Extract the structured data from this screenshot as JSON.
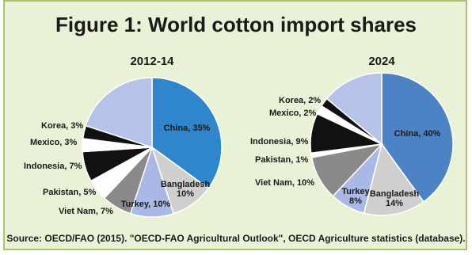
{
  "title": "Figure 1: World cotton import shares",
  "source": "Source: OECD/FAO (2015). \"OECD-FAO Agricultural Outlook\", OECD Agriculture statistics (database).",
  "chart_data": [
    {
      "type": "pie",
      "title": "2012-14",
      "slices": [
        {
          "label": "China, 35%",
          "value": 35,
          "color": "#2f86cc"
        },
        {
          "label": "Bangladesh\n10%",
          "value": 10,
          "color": "#cfcfcf"
        },
        {
          "label": "Turkey, 10%",
          "value": 10,
          "color": "#a9b8e6"
        },
        {
          "label": "Viet Nam, 7%",
          "value": 7,
          "color": "#8a8a8a"
        },
        {
          "label": "Pakistan, 5%",
          "value": 5,
          "color": "#ffffff"
        },
        {
          "label": "Indonesia, 7%",
          "value": 7,
          "color": "#111111"
        },
        {
          "label": "Mexico, 3%",
          "value": 3,
          "color": "#ffffff"
        },
        {
          "label": "Korea, 3%",
          "value": 3,
          "color": "#111111"
        },
        {
          "label": "",
          "value": 20,
          "color": "#b6c2e8"
        }
      ]
    },
    {
      "type": "pie",
      "title": "2024",
      "slices": [
        {
          "label": "China, 40%",
          "value": 40,
          "color": "#4d82c4"
        },
        {
          "label": "Bangladesh\n14%",
          "value": 14,
          "color": "#cfcfcf"
        },
        {
          "label": "Turkey\n8%",
          "value": 8,
          "color": "#a9b8e6"
        },
        {
          "label": "Viet Nam, 10%",
          "value": 10,
          "color": "#8a8a8a"
        },
        {
          "label": "Pakistan, 1%",
          "value": 1,
          "color": "#ffffff"
        },
        {
          "label": "Indonesia, 9%",
          "value": 9,
          "color": "#111111"
        },
        {
          "label": "Mexico, 2%",
          "value": 2,
          "color": "#ffffff"
        },
        {
          "label": "Korea, 2%",
          "value": 2,
          "color": "#111111"
        },
        {
          "label": "",
          "value": 14,
          "color": "#b6c2e8"
        }
      ]
    }
  ]
}
